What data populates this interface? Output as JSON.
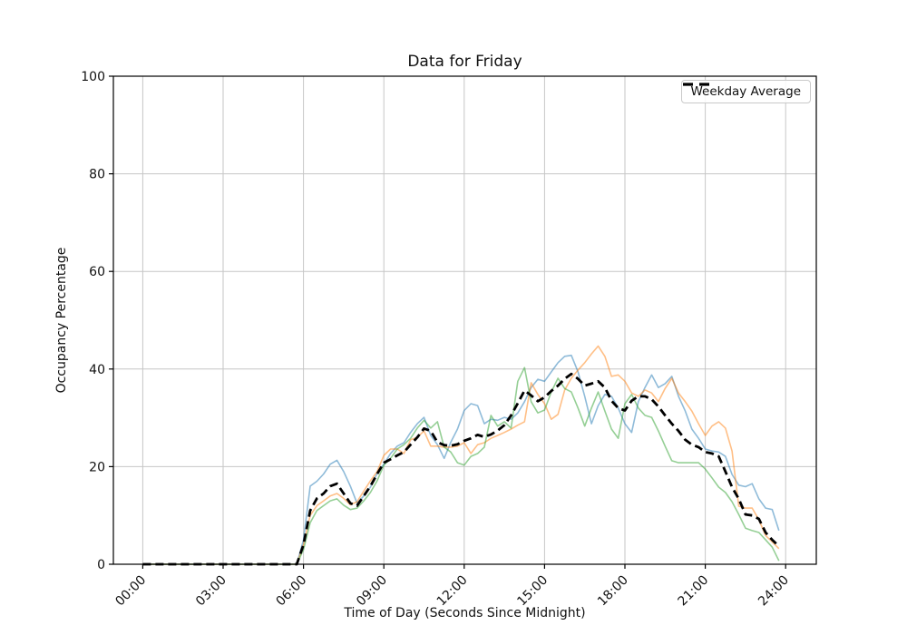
{
  "chart_data": {
    "type": "line",
    "title": "Data for Friday",
    "xlabel": "Time of Day (Seconds Since Midnight)",
    "ylabel": "Occupancy Percentage",
    "legend_label": "Weekday Average",
    "legend_position": "upper right",
    "grid": true,
    "grid_color": "#c6c6c6",
    "ylim": [
      0,
      100
    ],
    "yticks": [
      0,
      20,
      40,
      60,
      80,
      100
    ],
    "ytick_labels": [
      "0",
      "20",
      "40",
      "60",
      "80",
      "100"
    ],
    "xtick_hours": [
      0,
      3,
      6,
      9,
      12,
      15,
      18,
      21,
      24
    ],
    "xticks": [
      "00:00",
      "03:00",
      "06:00",
      "09:00",
      "12:00",
      "15:00",
      "18:00",
      "21:00",
      "24:00"
    ],
    "x_start_hour": 0,
    "x_step_hours": 0.25,
    "series": [
      {
        "key": "sample-blue",
        "name": "series-1",
        "color": "#1f77b4",
        "alpha": 0.5,
        "width": 1.6,
        "dash": null,
        "values": [
          0,
          0,
          0,
          0,
          0,
          0,
          0,
          0,
          0,
          0,
          0,
          0,
          0,
          0,
          0,
          0,
          0,
          0,
          0,
          0,
          0,
          0,
          0,
          0,
          5,
          16,
          17,
          18.5,
          20.5,
          21.3,
          19,
          16,
          12.5,
          14,
          15.8,
          18.6,
          20.5,
          22.7,
          24.2,
          24.9,
          27,
          28.8,
          30.1,
          26.4,
          24.5,
          21.7,
          25,
          27.7,
          31.5,
          32.9,
          32.5,
          28.8,
          29.7,
          29.5,
          30.1,
          29.7,
          31,
          33.3,
          36.2,
          37.9,
          37.5,
          39.4,
          41.3,
          42.6,
          42.8,
          39.4,
          34.4,
          28.8,
          32.5,
          34.8,
          34.4,
          32,
          28.8,
          27,
          33.3,
          36.2,
          38.8,
          36.2,
          37,
          38.5,
          34.4,
          31.4,
          27.7,
          25.8,
          23.6,
          23.2,
          23,
          22.1,
          18.4,
          16.2,
          15.9,
          16.5,
          13.4,
          11.5,
          11.2,
          6.9
        ]
      },
      {
        "key": "sample-orange",
        "name": "series-2",
        "color": "#ff7f0e",
        "alpha": 0.5,
        "width": 1.6,
        "dash": null,
        "values": [
          0,
          0,
          0,
          0,
          0,
          0,
          0,
          0,
          0,
          0,
          0,
          0,
          0,
          0,
          0,
          0,
          0,
          0,
          0,
          0,
          0,
          0,
          0,
          0,
          4,
          10,
          12,
          13,
          14,
          14.5,
          13.5,
          12.2,
          12.8,
          15,
          17.1,
          19,
          22.3,
          23.6,
          23.6,
          22.7,
          25.5,
          26,
          27.3,
          24.2,
          24.2,
          24,
          24,
          24.2,
          24.9,
          22.7,
          24.5,
          24.9,
          25.8,
          26.4,
          27,
          27.7,
          28.5,
          29.2,
          37.2,
          34.8,
          32.9,
          29.7,
          30.7,
          35.7,
          38.1,
          39.8,
          41.3,
          43.1,
          44.7,
          42.6,
          38.5,
          38.8,
          37.5,
          35.1,
          34.4,
          35.7,
          35.1,
          33.3,
          36,
          38.1,
          35.1,
          33.3,
          31.4,
          28.8,
          26.4,
          28.3,
          29.2,
          27.9,
          23.2,
          11.9,
          11.5,
          11.5,
          9.1,
          5.9,
          4.6,
          3.2
        ]
      },
      {
        "key": "sample-green",
        "name": "series-3",
        "color": "#2ca02c",
        "alpha": 0.5,
        "width": 1.6,
        "dash": null,
        "values": [
          0,
          0,
          0,
          0,
          0,
          0,
          0,
          0,
          0,
          0,
          0,
          0,
          0,
          0,
          0,
          0,
          0,
          0,
          0,
          0,
          0,
          0,
          0,
          0,
          3,
          8.5,
          11,
          12,
          13,
          13.4,
          12.1,
          11.2,
          11.5,
          13,
          14.7,
          17.1,
          20.3,
          21.7,
          23.6,
          24.5,
          25.8,
          27.9,
          29.5,
          27.9,
          29.2,
          24,
          23,
          20.8,
          20.3,
          22.1,
          22.7,
          24,
          30.5,
          28.3,
          29.2,
          27.9,
          37.5,
          40.3,
          33.3,
          31,
          31.6,
          35.3,
          38.1,
          36,
          35.3,
          32,
          28.3,
          32,
          35.3,
          31.4,
          27.7,
          25.8,
          32.9,
          34.8,
          32,
          30.5,
          30.1,
          27.3,
          24.2,
          21.2,
          20.8,
          20.8,
          20.8,
          20.8,
          19.5,
          17.7,
          15.8,
          14.7,
          12.8,
          10.2,
          7.4,
          6.9,
          6.5,
          5,
          3.5,
          0.7
        ]
      },
      {
        "key": "weekday-average",
        "name": "Weekday Average",
        "color": "#000000",
        "alpha": 1,
        "width": 2.8,
        "dash": "9 5",
        "values": [
          0,
          0,
          0,
          0,
          0,
          0,
          0,
          0,
          0,
          0,
          0,
          0,
          0,
          0,
          0,
          0,
          0,
          0,
          0,
          0,
          0,
          0,
          0,
          0,
          4,
          11,
          13.5,
          14.5,
          16,
          16.5,
          14.5,
          12.5,
          12,
          14,
          16,
          18.5,
          20.8,
          21.5,
          22.3,
          23,
          24.5,
          26,
          27.8,
          27.3,
          25,
          24.4,
          24.3,
          24.6,
          25.3,
          25.8,
          26.5,
          26.1,
          26.6,
          27.4,
          28.5,
          30.5,
          33,
          35.6,
          34.6,
          33.4,
          34.2,
          35.5,
          36.6,
          38,
          39,
          38,
          36.6,
          37,
          37.5,
          36.2,
          33.5,
          32,
          31.5,
          33.5,
          34.4,
          34.4,
          33.8,
          32.3,
          30.5,
          28.8,
          27.3,
          25.5,
          24.5,
          24,
          23,
          22.7,
          22.1,
          19,
          15.8,
          13.4,
          10.2,
          10,
          9.3,
          6.5,
          5,
          3.7
        ]
      }
    ]
  }
}
